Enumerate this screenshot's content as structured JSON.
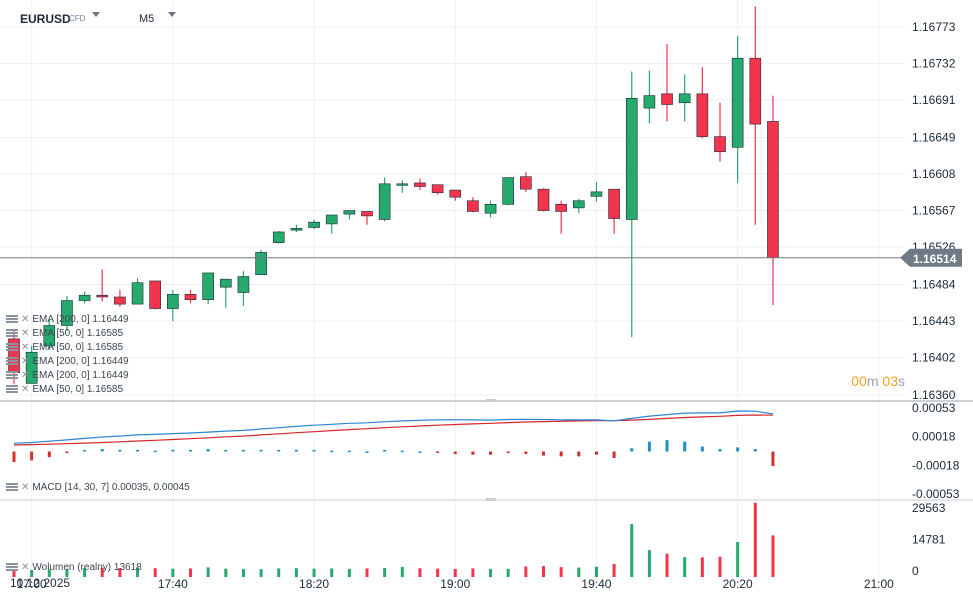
{
  "header": {
    "symbol": "EURUSD",
    "instrument_type": "CFD",
    "timeframe": "M5"
  },
  "countdown": {
    "minutes": "00",
    "min_unit": "m",
    "seconds": "03",
    "sec_unit": "s"
  },
  "date_label": "10.12.2025",
  "legend": {
    "ema_rows": [
      "EMA [200, 0] 1.16449",
      "EMA [50, 0] 1.16585",
      "EMA [50, 0] 1.16585",
      "EMA [200, 0] 1.16449",
      "EMA [200, 0] 1.16449",
      "EMA [50, 0] 1.16585"
    ],
    "macd": "MACD [14, 30, 7] 0.00035, 0.00045",
    "volume": "Wolumen (realny) 13618"
  },
  "colors": {
    "up": "#26a96c",
    "down": "#f2344d",
    "ema_fast": "#2b86d6",
    "ema_slow": "#d6262e",
    "macd_up": "#1f8ec9",
    "macd_down": "#d32f2f",
    "last_price_tag": "#6f7a86",
    "grid": "#eef0f3"
  },
  "chart_data": [
    {
      "type": "candlestick",
      "title": "",
      "current_price": 1.16514,
      "y_ticks": [
        "1.16773",
        "1.16732",
        "1.16691",
        "1.16649",
        "1.16608",
        "1.16567",
        "1.16526",
        "1.16484",
        "1.16443",
        "1.16402",
        "1.16360"
      ],
      "x_ticks": [
        "17:00",
        "17:40",
        "18:20",
        "19:00",
        "19:40",
        "20:20",
        "21:00"
      ],
      "ylim": [
        1.16355,
        1.16815
      ],
      "candles": [
        {
          "o": 1.16423,
          "h": 1.16434,
          "l": 1.16372,
          "c": 1.16385
        },
        {
          "o": 1.16373,
          "h": 1.16415,
          "l": 1.16373,
          "c": 1.16408
        },
        {
          "o": 1.16415,
          "h": 1.16444,
          "l": 1.16411,
          "c": 1.16438
        },
        {
          "o": 1.16438,
          "h": 1.16471,
          "l": 1.16432,
          "c": 1.16466
        },
        {
          "o": 1.16466,
          "h": 1.16476,
          "l": 1.16463,
          "c": 1.16472
        },
        {
          "o": 1.16472,
          "h": 1.16501,
          "l": 1.16465,
          "c": 1.1647
        },
        {
          "o": 1.1647,
          "h": 1.16478,
          "l": 1.16459,
          "c": 1.16462
        },
        {
          "o": 1.16462,
          "h": 1.16491,
          "l": 1.16462,
          "c": 1.16486
        },
        {
          "o": 1.16488,
          "h": 1.16488,
          "l": 1.16456,
          "c": 1.16457
        },
        {
          "o": 1.16457,
          "h": 1.16478,
          "l": 1.16443,
          "c": 1.16473
        },
        {
          "o": 1.16473,
          "h": 1.16478,
          "l": 1.16463,
          "c": 1.16467
        },
        {
          "o": 1.16467,
          "h": 1.16497,
          "l": 1.16462,
          "c": 1.16497
        },
        {
          "o": 1.16481,
          "h": 1.1649,
          "l": 1.16458,
          "c": 1.1649
        },
        {
          "o": 1.16475,
          "h": 1.16499,
          "l": 1.1646,
          "c": 1.16493
        },
        {
          "o": 1.16495,
          "h": 1.16523,
          "l": 1.16495,
          "c": 1.1652
        },
        {
          "o": 1.16531,
          "h": 1.16544,
          "l": 1.1653,
          "c": 1.16543
        },
        {
          "o": 1.16545,
          "h": 1.16551,
          "l": 1.16543,
          "c": 1.16547
        },
        {
          "o": 1.16548,
          "h": 1.16557,
          "l": 1.16546,
          "c": 1.16554
        },
        {
          "o": 1.16552,
          "h": 1.1656,
          "l": 1.16541,
          "c": 1.16562
        },
        {
          "o": 1.16563,
          "h": 1.16567,
          "l": 1.16557,
          "c": 1.16567
        },
        {
          "o": 1.16566,
          "h": 1.16566,
          "l": 1.16551,
          "c": 1.16561
        },
        {
          "o": 1.16557,
          "h": 1.16604,
          "l": 1.16555,
          "c": 1.16597
        },
        {
          "o": 1.16596,
          "h": 1.16601,
          "l": 1.16587,
          "c": 1.16597
        },
        {
          "o": 1.16598,
          "h": 1.16603,
          "l": 1.1659,
          "c": 1.16594
        },
        {
          "o": 1.16596,
          "h": 1.16596,
          "l": 1.16585,
          "c": 1.16587
        },
        {
          "o": 1.1659,
          "h": 1.1659,
          "l": 1.16578,
          "c": 1.16582
        },
        {
          "o": 1.16578,
          "h": 1.16582,
          "l": 1.16565,
          "c": 1.16566
        },
        {
          "o": 1.16564,
          "h": 1.16578,
          "l": 1.16559,
          "c": 1.16574
        },
        {
          "o": 1.16574,
          "h": 1.16604,
          "l": 1.16573,
          "c": 1.16604
        },
        {
          "o": 1.16605,
          "h": 1.1661,
          "l": 1.16588,
          "c": 1.16591
        },
        {
          "o": 1.16591,
          "h": 1.16592,
          "l": 1.16566,
          "c": 1.16567
        },
        {
          "o": 1.16574,
          "h": 1.16578,
          "l": 1.16541,
          "c": 1.16566
        },
        {
          "o": 1.1657,
          "h": 1.1658,
          "l": 1.16564,
          "c": 1.16578
        },
        {
          "o": 1.16583,
          "h": 1.16599,
          "l": 1.16577,
          "c": 1.16588
        },
        {
          "o": 1.16591,
          "h": 1.16591,
          "l": 1.16541,
          "c": 1.16558
        },
        {
          "o": 1.16557,
          "h": 1.16723,
          "l": 1.16425,
          "c": 1.16693
        },
        {
          "o": 1.16682,
          "h": 1.16724,
          "l": 1.16665,
          "c": 1.16696
        },
        {
          "o": 1.16698,
          "h": 1.16754,
          "l": 1.16667,
          "c": 1.16686
        },
        {
          "o": 1.16688,
          "h": 1.1672,
          "l": 1.16667,
          "c": 1.16698
        },
        {
          "o": 1.16698,
          "h": 1.16728,
          "l": 1.16648,
          "c": 1.1665
        },
        {
          "o": 1.1665,
          "h": 1.16688,
          "l": 1.16622,
          "c": 1.16633
        },
        {
          "o": 1.16638,
          "h": 1.16763,
          "l": 1.16598,
          "c": 1.16738
        },
        {
          "o": 1.16738,
          "h": 1.16796,
          "l": 1.16551,
          "c": 1.16664
        },
        {
          "o": 1.16667,
          "h": 1.16696,
          "l": 1.16461,
          "c": 1.16514
        }
      ],
      "ema_fast_levels": [
        1.16414,
        1.16418,
        1.16425,
        1.16432,
        1.1644,
        1.16447,
        1.16452,
        1.16458,
        1.16461,
        1.16465,
        1.16468,
        1.16473,
        1.16478,
        1.16482,
        1.16489,
        1.16496,
        1.16503,
        1.16509,
        1.16514,
        1.16519,
        1.16522,
        1.16527,
        1.16532,
        1.16535,
        1.16537,
        1.16538,
        1.16537,
        1.16536,
        1.16539,
        1.1654,
        1.16539,
        1.16537,
        1.16537,
        1.16537,
        1.16532,
        1.16545,
        1.16557,
        1.16565,
        1.16573,
        1.16574,
        1.16574,
        1.16584,
        1.16583,
        1.16568
      ],
      "ema_slow_levels": [
        1.16405,
        1.16407,
        1.16409,
        1.16412,
        1.16415,
        1.16418,
        1.16422,
        1.16426,
        1.1643,
        1.16434,
        1.16438,
        1.16443,
        1.16448,
        1.16452,
        1.16458,
        1.16464,
        1.1647,
        1.16475,
        1.16481,
        1.16486,
        1.16491,
        1.16496,
        1.16501,
        1.16505,
        1.16509,
        1.16513,
        1.16516,
        1.16519,
        1.16523,
        1.16526,
        1.16528,
        1.1653,
        1.16532,
        1.16534,
        1.16533,
        1.16536,
        1.1654,
        1.16545,
        1.1655,
        1.16553,
        1.16556,
        1.16561,
        1.16563,
        1.16562
      ],
      "macd_histogram": [
        -0.00013,
        -0.00011,
        -7e-05,
        -2e-05,
        2e-05,
        3e-05,
        2e-05,
        2e-05,
        1e-05,
        2e-05,
        2e-05,
        3e-05,
        2e-05,
        2e-05,
        2e-05,
        2e-05,
        2e-05,
        2e-05,
        1e-05,
        1e-05,
        0.0,
        2e-05,
        1e-05,
        0.0,
        -1e-05,
        -3e-05,
        -4e-05,
        -4e-05,
        -2e-05,
        -3e-05,
        -5e-05,
        -6e-05,
        -6e-05,
        -4e-05,
        -8e-05,
        4e-05,
        0.00012,
        0.00014,
        0.00012,
        6e-05,
        3e-05,
        5e-05,
        3e-05,
        -0.00018
      ],
      "macd_y_ticks": [
        "0.00053",
        "0.00018",
        "-0.00018",
        "-0.00053"
      ],
      "volume": [
        900,
        500,
        700,
        900,
        1400,
        1500,
        1400,
        1600,
        1300,
        1100,
        1200,
        1700,
        1100,
        900,
        900,
        1200,
        1300,
        1100,
        1200,
        1000,
        1200,
        1400,
        1900,
        1300,
        1100,
        900,
        1200,
        1000,
        1000,
        2100,
        2300,
        1800,
        1600,
        2000,
        3300,
        22000,
        9800,
        8100,
        6500,
        6400,
        6700,
        13600,
        32000,
        16700
      ],
      "volume_y_ticks": [
        "29563",
        "14781",
        "0"
      ]
    }
  ]
}
